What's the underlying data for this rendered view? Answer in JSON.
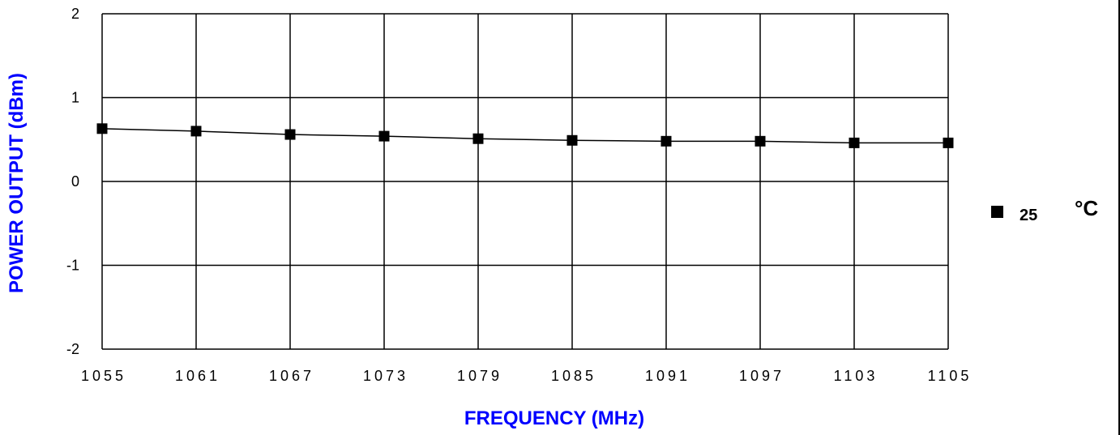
{
  "chart_data": {
    "type": "line",
    "categories": [
      "1055",
      "1061",
      "1067",
      "1073",
      "1079",
      "1085",
      "1091",
      "1097",
      "1103",
      "1105"
    ],
    "series": [
      {
        "name": "25",
        "values": [
          0.63,
          0.6,
          0.56,
          0.54,
          0.51,
          0.49,
          0.48,
          0.48,
          0.46,
          0.46
        ]
      }
    ],
    "xlabel": "FREQUENCY (MHz)",
    "ylabel": "POWER OUTPUT (dBm)",
    "ylim": [
      -2,
      2
    ],
    "yticks": [
      "2",
      "1",
      "0",
      "-1",
      "-2"
    ],
    "grid": true,
    "legend": {
      "placement": "right",
      "label": "25",
      "unit": "°C"
    },
    "colors": {
      "axis_title": "#0000ff",
      "line": "#000000",
      "marker": "#000000",
      "grid": "#000000"
    }
  }
}
